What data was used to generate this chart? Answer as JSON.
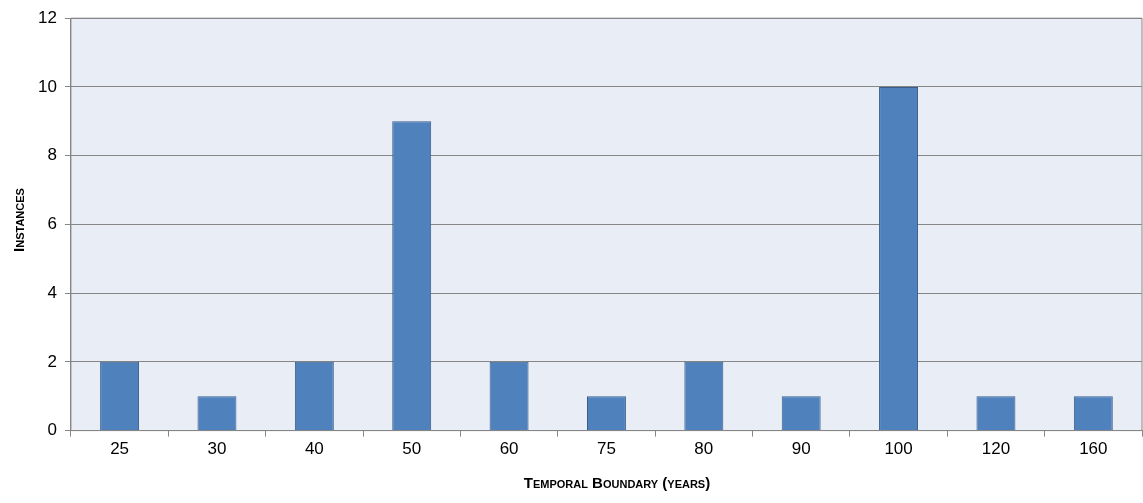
{
  "chart_data": {
    "type": "bar",
    "xlabel": "Temporal Boundary (years)",
    "ylabel": "Instances",
    "categories": [
      "25",
      "30",
      "40",
      "50",
      "60",
      "75",
      "80",
      "90",
      "100",
      "120",
      "160"
    ],
    "values": [
      2,
      1,
      2,
      9,
      2,
      1,
      2,
      1,
      10,
      1,
      1
    ],
    "color": "#4f81bd",
    "ylim": [
      0,
      12
    ],
    "yticks": [
      0,
      2,
      4,
      6,
      8,
      10,
      12
    ],
    "grid": "y",
    "legend": false
  }
}
